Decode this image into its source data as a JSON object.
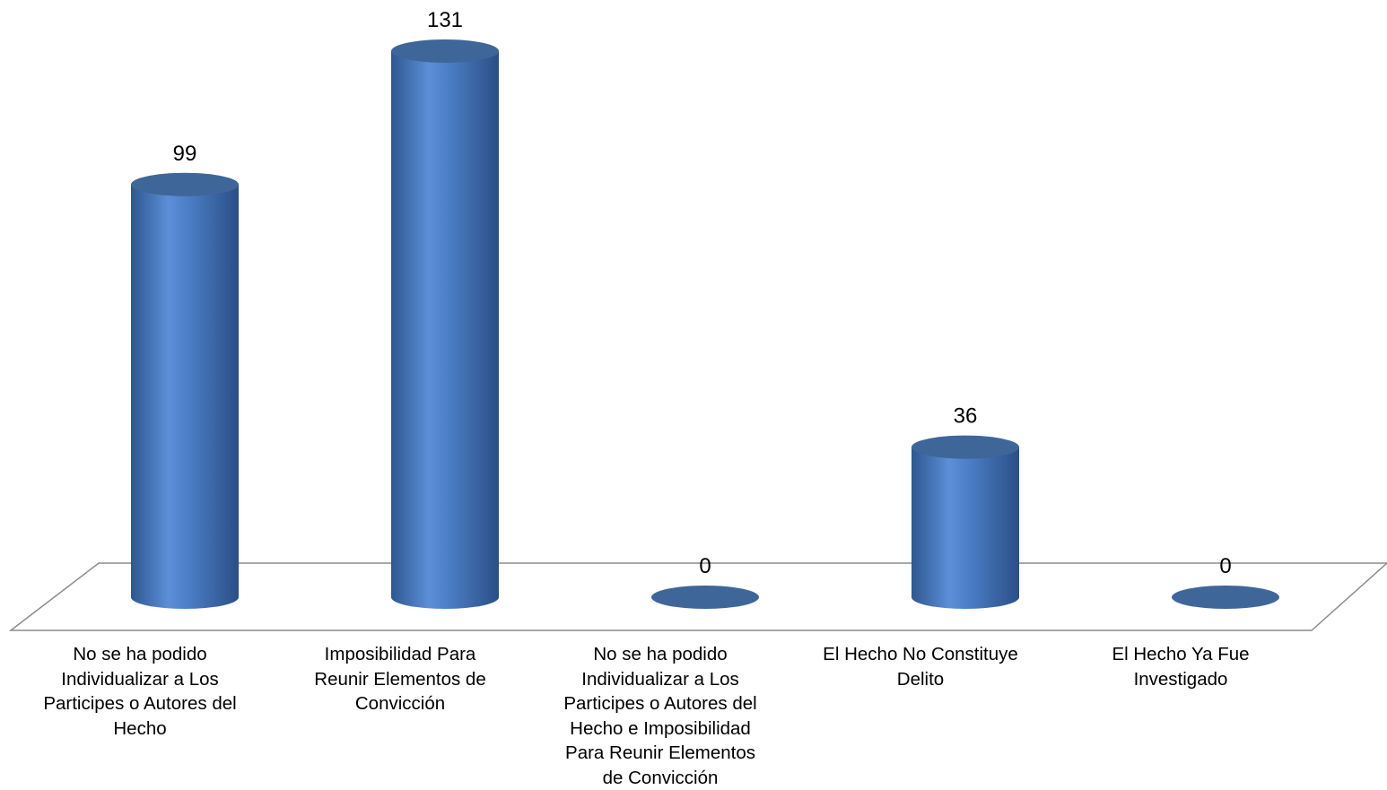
{
  "chart_data": {
    "type": "bar",
    "style": "3d-cylinder",
    "categories": [
      "No se ha podido\nIndividualizar a Los\nParticipes o Autores del\nHecho",
      "Imposibilidad Para\nReunir Elementos de\nConvicción",
      "No se ha podido\nIndividualizar a Los\nParticipes o Autores del\nHecho e Imposibilidad\nPara Reunir Elementos\nde Convicción",
      "El Hecho No Constituye\nDelito",
      "El Hecho Ya Fue\nInvestigado"
    ],
    "values": [
      99,
      131,
      0,
      36,
      0
    ],
    "data_labels": [
      "99",
      "131",
      "0",
      "36",
      "0"
    ],
    "title": "",
    "xlabel": "",
    "ylabel": "",
    "ylim": [
      0,
      131
    ],
    "grid": false,
    "legend": "none",
    "colors": {
      "bar_light": "#5b8fd8",
      "bar_mid": "#4a7cc4",
      "bar_dark": "#2f5790",
      "cap": "#3f6699",
      "floor_line": "#8c8c8c"
    }
  }
}
